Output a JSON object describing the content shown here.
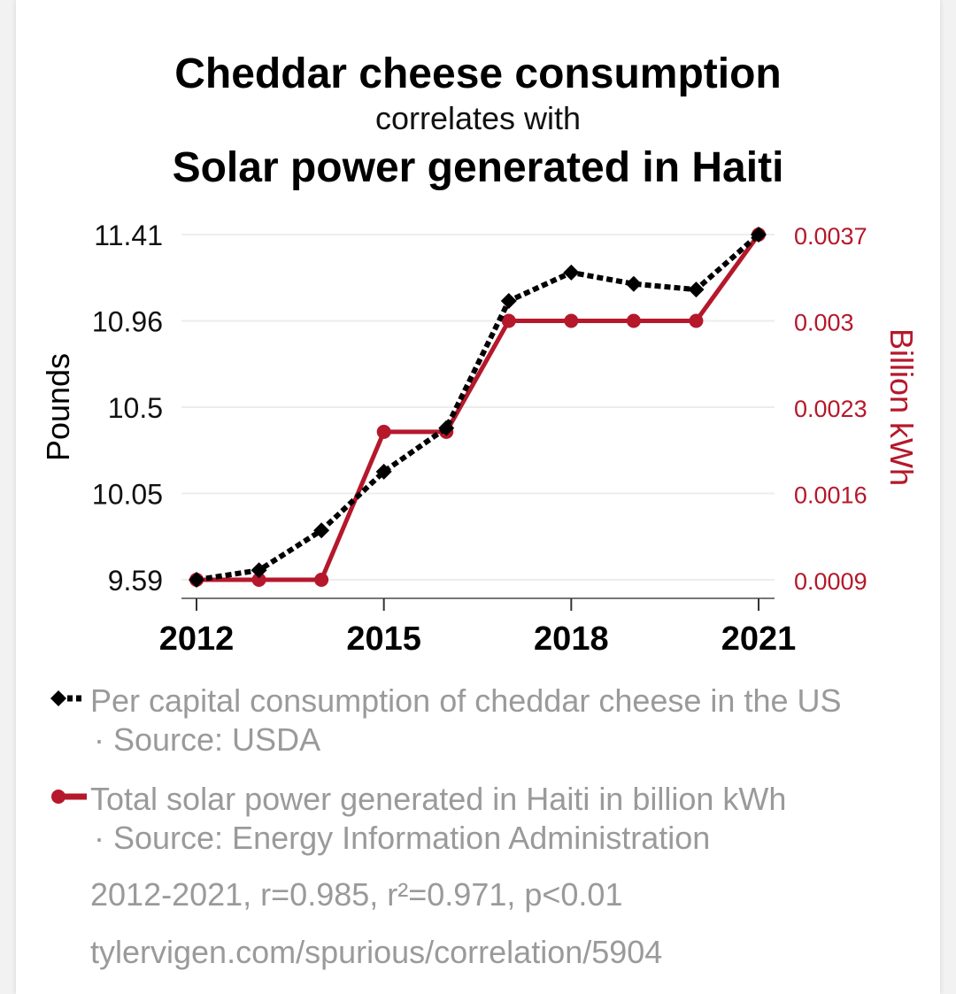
{
  "header": {
    "title": "Cheddar cheese consumption",
    "subtitle": "correlates with",
    "title2": "Solar power generated in Haiti"
  },
  "colors": {
    "series1": "#000000",
    "series2": "#b5182b",
    "muted": "#9a9a9a"
  },
  "chart_data": {
    "type": "line",
    "x": [
      2012,
      2013,
      2014,
      2015,
      2016,
      2017,
      2018,
      2019,
      2020,
      2021
    ],
    "xticks": [
      "2012",
      "2015",
      "2018",
      "2021"
    ],
    "yleft": {
      "label": "Pounds",
      "ticks": [
        "11.41",
        "10.96",
        "10.5",
        "10.05",
        "9.59"
      ],
      "lim": [
        9.59,
        11.41
      ]
    },
    "yright": {
      "label": "Billion kWh",
      "ticks": [
        "0.0037",
        "0.003",
        "0.0023",
        "0.0016",
        "0.0009"
      ],
      "lim": [
        0.0009,
        0.0037
      ]
    },
    "series": [
      {
        "axis": "left",
        "marker": "diamond",
        "style": "dotted",
        "values": [
          9.59,
          9.64,
          9.85,
          10.16,
          10.39,
          11.06,
          11.21,
          11.15,
          11.12,
          11.41
        ]
      },
      {
        "axis": "right",
        "marker": "circle",
        "style": "solid",
        "values": [
          0.0009,
          0.0009,
          0.0009,
          0.0021,
          0.0021,
          0.003,
          0.003,
          0.003,
          0.003,
          0.0037
        ]
      }
    ],
    "grid": true
  },
  "legend": {
    "s1_label": "Per capital consumption of cheddar cheese in the US",
    "s1_source": "· Source: USDA",
    "s2_label": "Total solar power generated in Haiti in billion kWh",
    "s2_source": "· Source: Energy Information Administration"
  },
  "stats": {
    "text": "2012-2021, r=0.985, r²=0.971, p<0.01"
  },
  "link": {
    "text": "tylervigen.com/spurious/correlation/5904"
  }
}
